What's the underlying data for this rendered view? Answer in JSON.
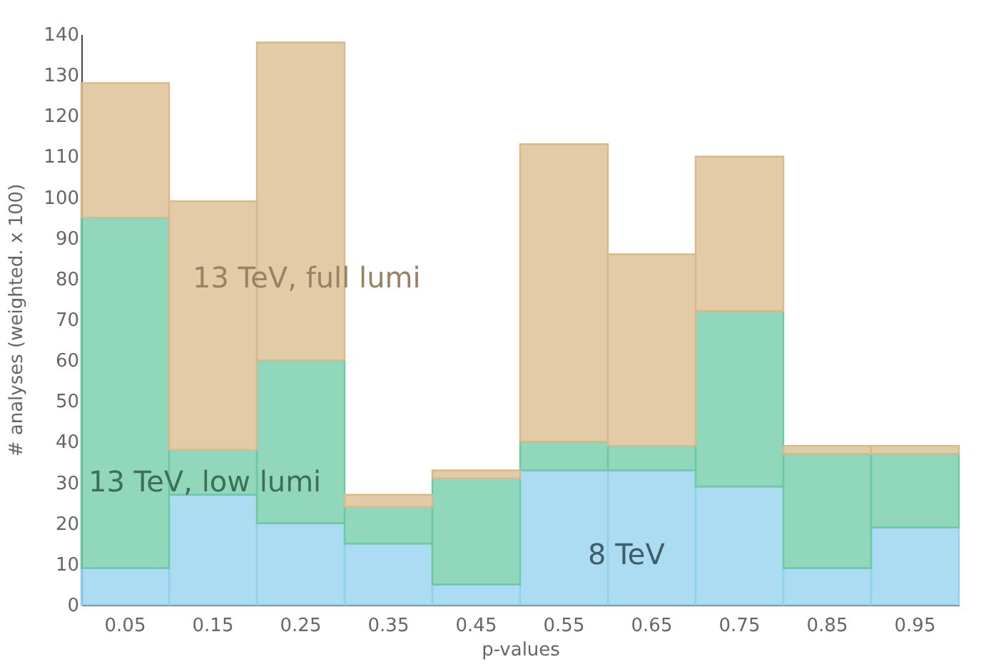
{
  "chart_data": {
    "type": "bar",
    "stacked": true,
    "xlabel": "p-values",
    "ylabel": "# analyses (weighted. x 100)",
    "categories": [
      "0.05",
      "0.15",
      "0.25",
      "0.35",
      "0.45",
      "0.55",
      "0.65",
      "0.75",
      "0.85",
      "0.95"
    ],
    "series": [
      {
        "name": "8 TeV",
        "color": "#8fd0ec",
        "values": [
          9,
          27,
          20,
          15,
          5,
          33,
          33,
          29,
          9,
          19
        ]
      },
      {
        "name": "13 TeV, low lumi",
        "color": "#6cc9a5",
        "values": [
          86,
          11,
          40,
          9,
          26,
          7,
          6,
          43,
          28,
          18
        ]
      },
      {
        "name": "13 TeV, full lumi",
        "color": "#d9b98a",
        "values": [
          33,
          61,
          78,
          3,
          2,
          73,
          47,
          38,
          2,
          2
        ]
      }
    ],
    "ylim": [
      0,
      140
    ],
    "yticks": [
      0,
      10,
      20,
      30,
      40,
      50,
      60,
      70,
      80,
      90,
      100,
      110,
      120,
      130,
      140
    ],
    "grid": false
  }
}
